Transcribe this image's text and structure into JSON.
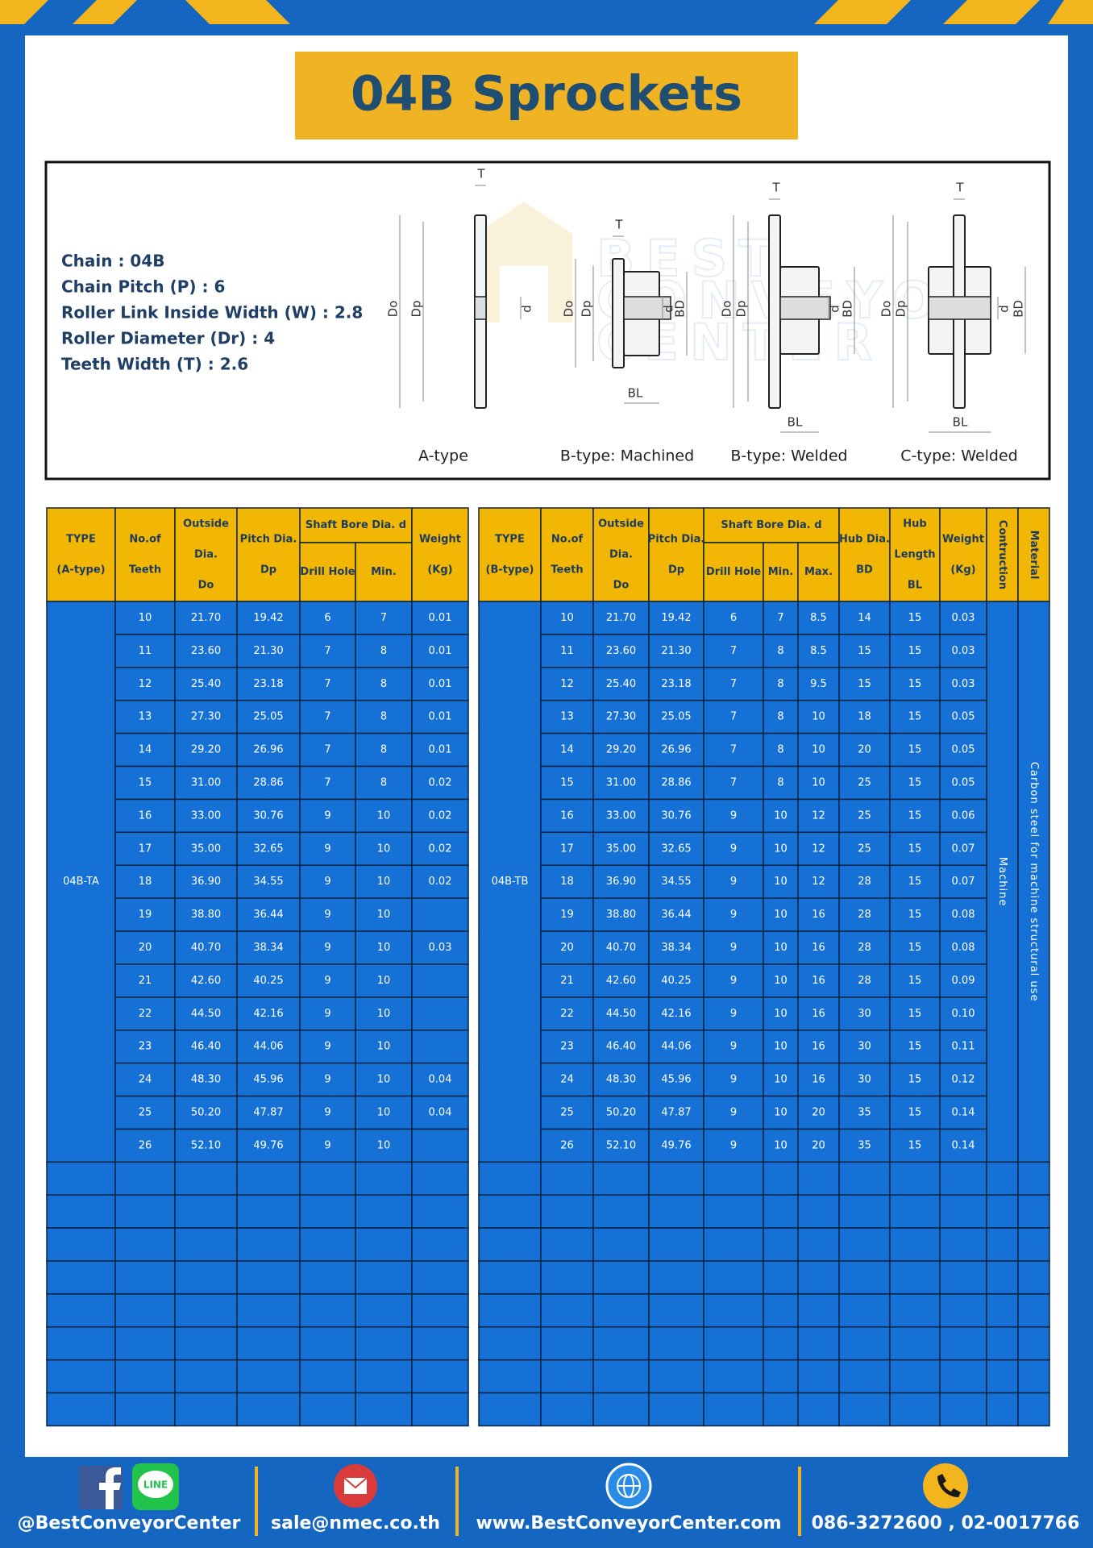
{
  "header": {
    "title": "04B Sprockets"
  },
  "specs": [
    "Chain  : 04B",
    "Chain Pitch (P)  :  6",
    "Roller Link Inside Width (W)  :  2.8",
    "Roller Diameter (Dr)  : 4",
    "Teeth Width (T)  :  2.6"
  ],
  "diagram": {
    "labels": {
      "T": "T",
      "Do": "Do",
      "Dp": "Dp",
      "d": "d",
      "BD": "BD",
      "BL": "BL"
    },
    "captions": [
      "A-type",
      "B-type: Machined",
      "B-type: Welded",
      "C-type: Welded"
    ],
    "watermark": [
      "BEST",
      "CONVEYOR",
      "CENTER"
    ]
  },
  "table_a": {
    "headers": [
      [
        "TYPE",
        "(A-type)"
      ],
      [
        "No.of",
        "Teeth"
      ],
      [
        "Outside",
        "Dia.",
        "Do"
      ],
      [
        "Pitch Dia.",
        "Dp"
      ],
      [
        "Drill Hole"
      ],
      [
        "Min."
      ],
      [
        "Weight",
        "(Kg)"
      ]
    ],
    "group_header": "Shaft Bore Dia. d",
    "type_label": "04B-TA",
    "rows": [
      [
        "10",
        "21.70",
        "19.42",
        "6",
        "7",
        "0.01"
      ],
      [
        "11",
        "23.60",
        "21.30",
        "7",
        "8",
        "0.01"
      ],
      [
        "12",
        "25.40",
        "23.18",
        "7",
        "8",
        "0.01"
      ],
      [
        "13",
        "27.30",
        "25.05",
        "7",
        "8",
        "0.01"
      ],
      [
        "14",
        "29.20",
        "26.96",
        "7",
        "8",
        "0.01"
      ],
      [
        "15",
        "31.00",
        "28.86",
        "7",
        "8",
        "0.02"
      ],
      [
        "16",
        "33.00",
        "30.76",
        "9",
        "10",
        "0.02"
      ],
      [
        "17",
        "35.00",
        "32.65",
        "9",
        "10",
        "0.02"
      ],
      [
        "18",
        "36.90",
        "34.55",
        "9",
        "10",
        "0.02"
      ],
      [
        "19",
        "38.80",
        "36.44",
        "9",
        "10",
        null
      ],
      [
        "20",
        "40.70",
        "38.34",
        "9",
        "10",
        "0.03"
      ],
      [
        "21",
        "42.60",
        "40.25",
        "9",
        "10",
        null
      ],
      [
        "22",
        "44.50",
        "42.16",
        "9",
        "10",
        null
      ],
      [
        "23",
        "46.40",
        "44.06",
        "9",
        "10",
        null
      ],
      [
        "24",
        "48.30",
        "45.96",
        "9",
        "10",
        "0.04"
      ],
      [
        "25",
        "50.20",
        "47.87",
        "9",
        "10",
        "0.04"
      ],
      [
        "26",
        "52.10",
        "49.76",
        "9",
        "10",
        null
      ]
    ]
  },
  "table_b": {
    "headers": [
      [
        "TYPE",
        "(B-type)"
      ],
      [
        "No.of",
        "Teeth"
      ],
      [
        "Outside",
        "Dia.",
        "Do"
      ],
      [
        "Pitch Dia.",
        "Dp"
      ],
      [
        "Drill Hole"
      ],
      [
        "Min."
      ],
      [
        "Max."
      ],
      [
        "Hub Dia.",
        "BD"
      ],
      [
        "Hub",
        "Length",
        "BL"
      ],
      [
        "Weight",
        "(Kg)"
      ],
      [
        "Contruction"
      ],
      [
        "Material"
      ]
    ],
    "group_header": "Shaft Bore Dia. d",
    "type_label": "04B-TB",
    "construction": "Machine",
    "material": "Carbon steel for machine structural use",
    "rows": [
      [
        "10",
        "21.70",
        "19.42",
        "6",
        "7",
        "8.5",
        "14",
        "15",
        "0.03"
      ],
      [
        "11",
        "23.60",
        "21.30",
        "7",
        "8",
        "8.5",
        "15",
        "15",
        "0.03"
      ],
      [
        "12",
        "25.40",
        "23.18",
        "7",
        "8",
        "9.5",
        "15",
        "15",
        "0.03"
      ],
      [
        "13",
        "27.30",
        "25.05",
        "7",
        "8",
        "10",
        "18",
        "15",
        "0.05"
      ],
      [
        "14",
        "29.20",
        "26.96",
        "7",
        "8",
        "10",
        "20",
        "15",
        "0.05"
      ],
      [
        "15",
        "31.00",
        "28.86",
        "7",
        "8",
        "10",
        "25",
        "15",
        "0.05"
      ],
      [
        "16",
        "33.00",
        "30.76",
        "9",
        "10",
        "12",
        "25",
        "15",
        "0.06"
      ],
      [
        "17",
        "35.00",
        "32.65",
        "9",
        "10",
        "12",
        "25",
        "15",
        "0.07"
      ],
      [
        "18",
        "36.90",
        "34.55",
        "9",
        "10",
        "12",
        "28",
        "15",
        "0.07"
      ],
      [
        "19",
        "38.80",
        "36.44",
        "9",
        "10",
        "16",
        "28",
        "15",
        "0.08"
      ],
      [
        "20",
        "40.70",
        "38.34",
        "9",
        "10",
        "16",
        "28",
        "15",
        "0.08"
      ],
      [
        "21",
        "42.60",
        "40.25",
        "9",
        "10",
        "16",
        "28",
        "15",
        "0.09"
      ],
      [
        "22",
        "44.50",
        "42.16",
        "9",
        "10",
        "16",
        "30",
        "15",
        "0.10"
      ],
      [
        "23",
        "46.40",
        "44.06",
        "9",
        "10",
        "16",
        "30",
        "15",
        "0.11"
      ],
      [
        "24",
        "48.30",
        "45.96",
        "9",
        "10",
        "16",
        "30",
        "15",
        "0.12"
      ],
      [
        "25",
        "50.20",
        "47.87",
        "9",
        "10",
        "20",
        "35",
        "15",
        "0.14"
      ],
      [
        "26",
        "52.10",
        "49.76",
        "9",
        "10",
        "20",
        "35",
        "15",
        "0.14"
      ]
    ]
  },
  "footer": {
    "social": "@BestConveyorCenter",
    "line_badge": "LINE",
    "email": "sale@nmec.co.th",
    "website": "www.BestConveyorCenter.com",
    "phone": "086-3272600 , 02-0017766"
  }
}
